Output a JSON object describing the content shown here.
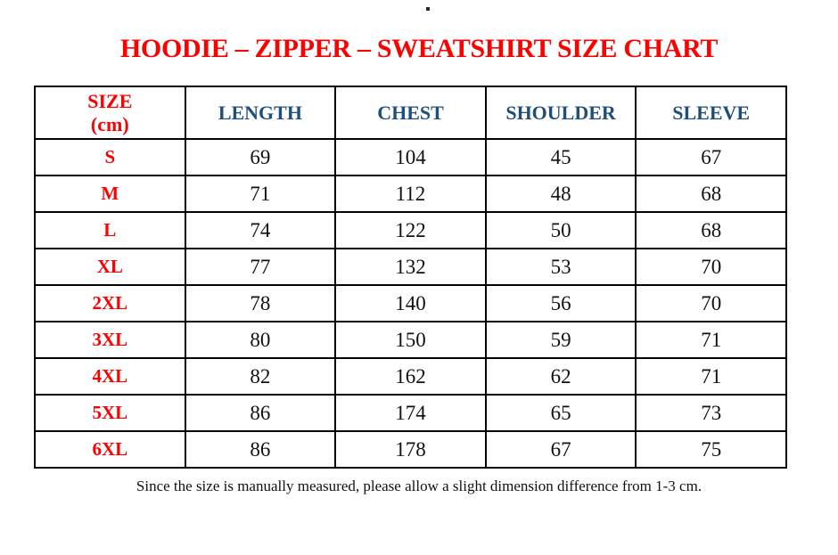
{
  "page": {
    "stray_dot": "."
  },
  "title": "HOODIE – ZIPPER – SWEATSHIRT SIZE CHART",
  "colors": {
    "title_red": "#fe0000",
    "size_label_red": "#fe0000",
    "header_blue": "#1f4e79",
    "body_text": "#111111",
    "border": "#000000",
    "background": "#ffffff"
  },
  "table": {
    "header": {
      "size_line1": "SIZE",
      "size_line2": "(cm)",
      "columns": [
        "LENGTH",
        "CHEST",
        "SHOULDER",
        "SLEEVE"
      ]
    },
    "rows": [
      {
        "size": "S",
        "length": "69",
        "chest": "104",
        "shoulder": "45",
        "sleeve": "67"
      },
      {
        "size": "M",
        "length": "71",
        "chest": "112",
        "shoulder": "48",
        "sleeve": "68"
      },
      {
        "size": "L",
        "length": "74",
        "chest": "122",
        "shoulder": "50",
        "sleeve": "68"
      },
      {
        "size": "XL",
        "length": "77",
        "chest": "132",
        "shoulder": "53",
        "sleeve": "70"
      },
      {
        "size": "2XL",
        "length": "78",
        "chest": "140",
        "shoulder": "56",
        "sleeve": "70"
      },
      {
        "size": "3XL",
        "length": "80",
        "chest": "150",
        "shoulder": "59",
        "sleeve": "71"
      },
      {
        "size": "4XL",
        "length": "82",
        "chest": "162",
        "shoulder": "62",
        "sleeve": "71"
      },
      {
        "size": "5XL",
        "length": "86",
        "chest": "174",
        "shoulder": "65",
        "sleeve": "73"
      },
      {
        "size": "6XL",
        "length": "86",
        "chest": "178",
        "shoulder": "67",
        "sleeve": "75"
      }
    ]
  },
  "footer": {
    "note": "Since the size is manually measured, please allow a slight dimension difference from 1-3 cm."
  }
}
